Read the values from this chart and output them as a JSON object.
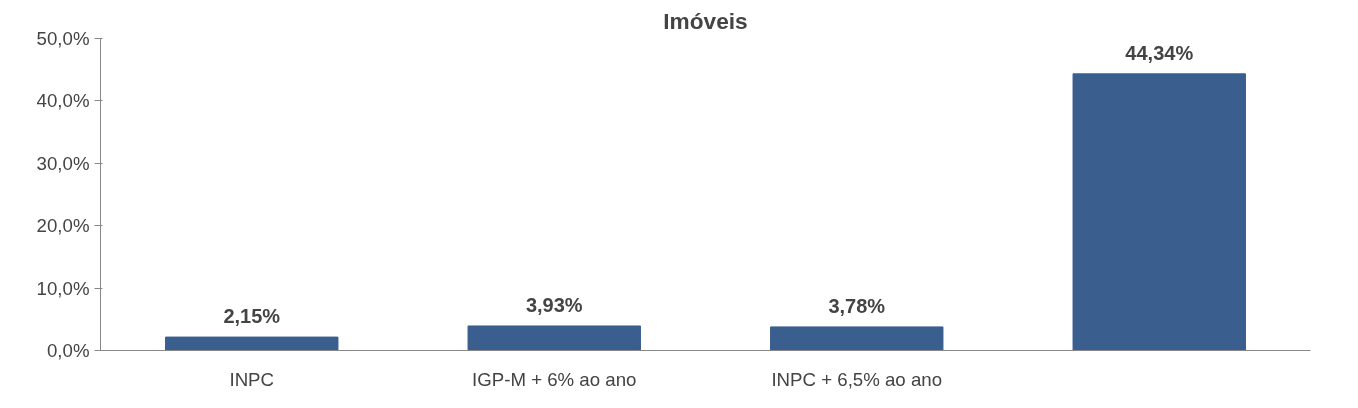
{
  "chart_data": {
    "type": "bar",
    "title": "Imóveis",
    "categories": [
      "INPC",
      "IGP-M + 6% ao ano",
      "INPC + 6,5% ao ano",
      null
    ],
    "values": [
      2.15,
      3.93,
      3.78,
      44.34
    ],
    "color": "#3a5f8f",
    "value_labels": [
      "2,15%",
      "3,93%",
      "3,78%",
      "44,34%"
    ],
    "ylim": [
      0,
      50
    ],
    "yticks": [
      {
        "value": 0,
        "label": "0,0%"
      },
      {
        "value": 10,
        "label": "10,0%"
      },
      {
        "value": 20,
        "label": "20,0%"
      },
      {
        "value": 30,
        "label": "30,0%"
      },
      {
        "value": 40,
        "label": "40,0%"
      },
      {
        "value": 50,
        "label": "50,0%"
      }
    ],
    "grid": false
  }
}
